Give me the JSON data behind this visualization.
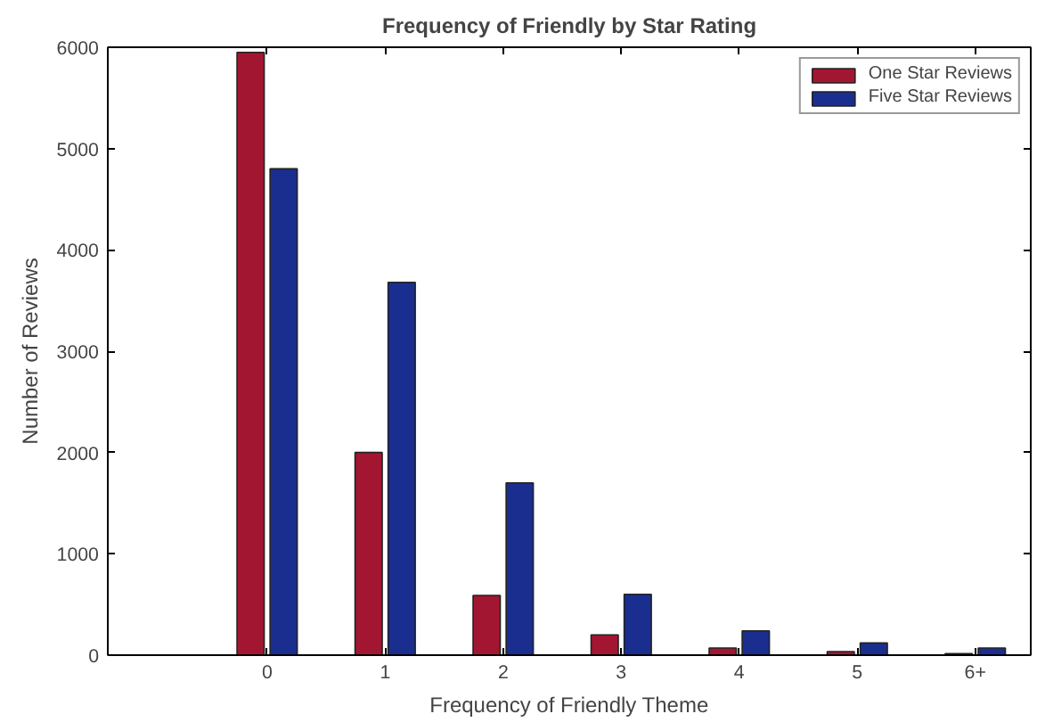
{
  "chart_data": {
    "type": "bar",
    "title": "Frequency of Friendly by Star Rating",
    "xlabel": "Frequency of Friendly Theme",
    "ylabel": "Number of Reviews",
    "categories": [
      "0",
      "1",
      "2",
      "3",
      "4",
      "5",
      "6+"
    ],
    "series": [
      {
        "name": "One Star Reviews",
        "color": "#a31631",
        "values": [
          5950,
          2000,
          590,
          200,
          70,
          35,
          15
        ]
      },
      {
        "name": "Five Star Reviews",
        "color": "#1a2e8f",
        "values": [
          4800,
          3680,
          1700,
          600,
          240,
          120,
          70
        ]
      }
    ],
    "ylim": [
      0,
      6000
    ],
    "yticks": [
      0,
      1000,
      2000,
      3000,
      4000,
      5000,
      6000
    ],
    "grid": false,
    "legend": "top right"
  }
}
